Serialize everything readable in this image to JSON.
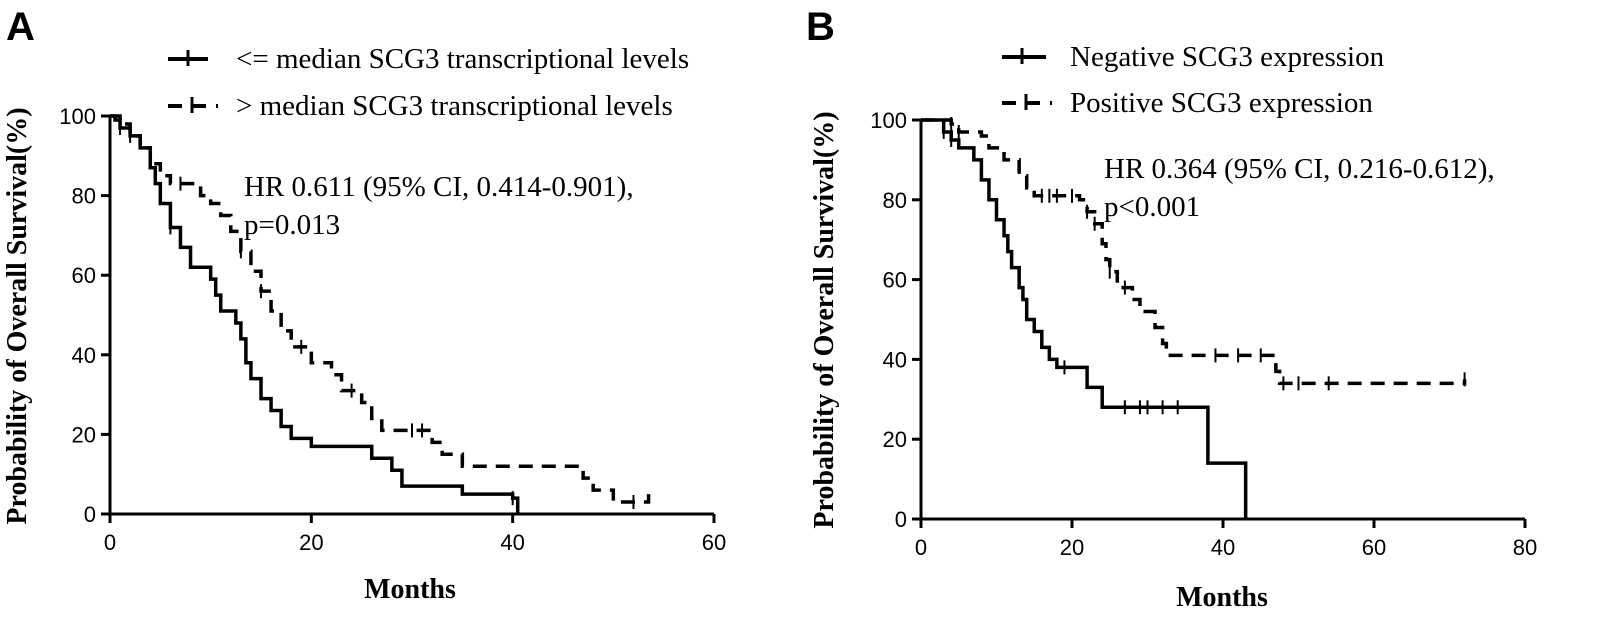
{
  "chart_data": [
    {
      "type": "line",
      "panel": "A",
      "xlabel": "Months",
      "ylabel": "Probability of Overall Survival(%)",
      "xlim": [
        0,
        60
      ],
      "ylim": [
        0,
        100
      ],
      "xticks": [
        "0",
        "20",
        "40",
        "60"
      ],
      "yticks": [
        "0",
        "20",
        "40",
        "60",
        "80",
        "100"
      ],
      "legend_position": "top",
      "annotation": [
        "HR 0.611 (95% CI, 0.414-0.901),",
        "p=0.013"
      ],
      "series": [
        {
          "name": "<= median SCG3 transcriptional levels",
          "style": "solid",
          "points": [
            [
              0,
              100
            ],
            [
              0.5,
              99
            ],
            [
              1,
              97
            ],
            [
              2,
              95
            ],
            [
              3,
              92
            ],
            [
              4,
              87
            ],
            [
              4.5,
              83
            ],
            [
              5,
              78
            ],
            [
              6,
              72
            ],
            [
              7,
              67
            ],
            [
              8,
              62
            ],
            [
              10,
              59
            ],
            [
              10.5,
              55
            ],
            [
              11,
              51
            ],
            [
              12.5,
              48
            ],
            [
              13,
              44
            ],
            [
              13.5,
              38
            ],
            [
              14,
              34
            ],
            [
              15,
              29
            ],
            [
              16,
              26
            ],
            [
              17,
              22
            ],
            [
              18,
              19
            ],
            [
              20,
              17
            ],
            [
              26,
              14
            ],
            [
              28,
              11
            ],
            [
              29,
              7
            ],
            [
              35,
              5
            ],
            [
              40,
              4
            ],
            [
              40.5,
              0
            ]
          ],
          "censor_x": [
            1,
            6,
            40
          ]
        },
        {
          "name": "> median SCG3 transcriptional levels",
          "style": "dashed",
          "points": [
            [
              0,
              100
            ],
            [
              1,
              98
            ],
            [
              2,
              95
            ],
            [
              3,
              92
            ],
            [
              4,
              88
            ],
            [
              5,
              85
            ],
            [
              6,
              83
            ],
            [
              8,
              83
            ],
            [
              9,
              80
            ],
            [
              10,
              78
            ],
            [
              11,
              75
            ],
            [
              12,
              71
            ],
            [
              13,
              66
            ],
            [
              14,
              61
            ],
            [
              15,
              56
            ],
            [
              16,
              51
            ],
            [
              17,
              46
            ],
            [
              18,
              42
            ],
            [
              20,
              38
            ],
            [
              22,
              35
            ],
            [
              23,
              31
            ],
            [
              25,
              28
            ],
            [
              26,
              24
            ],
            [
              27,
              21
            ],
            [
              32,
              18
            ],
            [
              33,
              15
            ],
            [
              35,
              12
            ],
            [
              47,
              9
            ],
            [
              48,
              6
            ],
            [
              50,
              3
            ],
            [
              53,
              3
            ],
            [
              53.5,
              5
            ]
          ],
          "censor_x": [
            2,
            7,
            13,
            15,
            19,
            24,
            30,
            31,
            52
          ]
        }
      ]
    },
    {
      "type": "line",
      "panel": "B",
      "xlabel": "Months",
      "ylabel": "Probability of Overall Survival(%)",
      "xlim": [
        0,
        80
      ],
      "ylim": [
        0,
        100
      ],
      "xticks": [
        "0",
        "20",
        "40",
        "60",
        "80"
      ],
      "yticks": [
        "0",
        "20",
        "40",
        "60",
        "80",
        "100"
      ],
      "legend_position": "top",
      "annotation": [
        "HR 0.364 (95% CI, 0.216-0.612),",
        "p<0.001"
      ],
      "series": [
        {
          "name": "Negative SCG3 expression",
          "style": "solid",
          "points": [
            [
              0,
              100
            ],
            [
              3,
              97
            ],
            [
              4,
              95
            ],
            [
              5,
              93
            ],
            [
              7,
              90
            ],
            [
              8,
              85
            ],
            [
              9,
              80
            ],
            [
              10,
              75
            ],
            [
              11,
              71
            ],
            [
              11.5,
              67
            ],
            [
              12,
              63
            ],
            [
              13,
              58
            ],
            [
              13.5,
              55
            ],
            [
              14,
              50
            ],
            [
              15,
              47
            ],
            [
              16,
              43
            ],
            [
              17,
              40
            ],
            [
              18,
              38
            ],
            [
              22,
              33
            ],
            [
              24,
              28
            ],
            [
              38,
              14
            ],
            [
              43,
              0
            ]
          ],
          "censor_x": [
            3,
            4,
            19,
            27,
            29,
            30,
            32,
            34
          ]
        },
        {
          "name": "Positive SCG3 expression",
          "style": "dashed",
          "points": [
            [
              0,
              100
            ],
            [
              4,
              99
            ],
            [
              5,
              97
            ],
            [
              8,
              96
            ],
            [
              9,
              93
            ],
            [
              11,
              90
            ],
            [
              13,
              86
            ],
            [
              14,
              83
            ],
            [
              15,
              81
            ],
            [
              21,
              80
            ],
            [
              22,
              77
            ],
            [
              23,
              74
            ],
            [
              24,
              69
            ],
            [
              24.5,
              65
            ],
            [
              25,
              62
            ],
            [
              26,
              58
            ],
            [
              28,
              55
            ],
            [
              29,
              52
            ],
            [
              31,
              48
            ],
            [
              32,
              44
            ],
            [
              32.5,
              41
            ],
            [
              40,
              41
            ],
            [
              47,
              37
            ],
            [
              47.5,
              34
            ],
            [
              72,
              34
            ],
            [
              72,
              35
            ]
          ],
          "censor_x": [
            4,
            5,
            16,
            17,
            18,
            20,
            22,
            23,
            25,
            27,
            39,
            42,
            45,
            48,
            50,
            54,
            72
          ]
        }
      ]
    }
  ]
}
